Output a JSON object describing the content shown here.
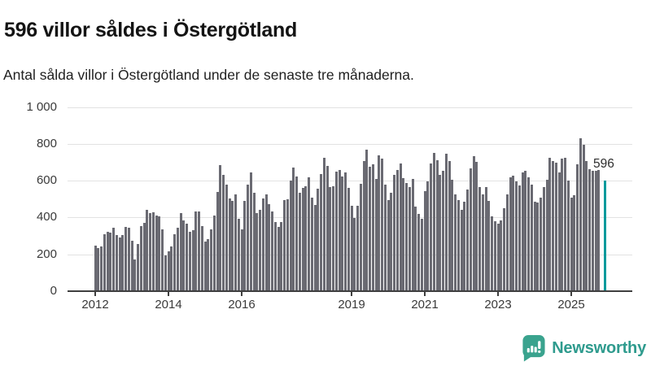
{
  "header": {
    "title": "596 villor såldes i Östergötland",
    "subtitle": "Antal sålda villor i Östergötland under de senaste tre månaderna."
  },
  "chart_data": {
    "type": "bar",
    "title": "596 villor såldes i Östergötland",
    "subtitle": "Antal sålda villor i Östergötland under de senaste tre månaderna.",
    "ylabel": "Antal sålda villor",
    "ylim": [
      0,
      1000
    ],
    "grid": "horizontal",
    "bar_color": "#6a6a72",
    "highlight_color": "#009a9c",
    "annotation_label": "596",
    "highlight_value": 596,
    "y_axis": {
      "ticks": [
        {
          "value": 0,
          "label": "0"
        },
        {
          "value": 200,
          "label": "200"
        },
        {
          "value": 400,
          "label": "400"
        },
        {
          "value": 600,
          "label": "600"
        },
        {
          "value": 800,
          "label": "800"
        },
        {
          "value": 1000,
          "label": "1 000"
        }
      ]
    },
    "x_axis": {
      "ticks": [
        {
          "label": "2012",
          "month_index": 0
        },
        {
          "label": "2014",
          "month_index": 24
        },
        {
          "label": "2016",
          "month_index": 48
        },
        {
          "label": "2019",
          "month_index": 84
        },
        {
          "label": "2021",
          "month_index": 108
        },
        {
          "label": "2023",
          "month_index": 132
        },
        {
          "label": "2025",
          "month_index": 156
        }
      ]
    },
    "values": [
      245,
      230,
      240,
      305,
      320,
      315,
      340,
      300,
      285,
      300,
      345,
      340,
      270,
      170,
      250,
      350,
      365,
      435,
      420,
      425,
      405,
      400,
      330,
      190,
      210,
      240,
      305,
      340,
      420,
      380,
      360,
      320,
      325,
      430,
      430,
      350,
      265,
      280,
      330,
      405,
      535,
      680,
      625,
      575,
      500,
      485,
      520,
      390,
      330,
      485,
      575,
      640,
      530,
      420,
      435,
      500,
      520,
      470,
      430,
      370,
      345,
      370,
      490,
      495,
      595,
      665,
      620,
      530,
      555,
      565,
      615,
      505,
      465,
      550,
      630,
      720,
      675,
      560,
      565,
      645,
      655,
      620,
      640,
      558,
      460,
      395,
      460,
      577,
      700,
      765,
      670,
      685,
      605,
      735,
      715,
      575,
      490,
      530,
      625,
      655,
      690,
      610,
      585,
      560,
      605,
      455,
      415,
      390,
      540,
      590,
      690,
      745,
      705,
      625,
      650,
      740,
      700,
      600,
      520,
      490,
      436,
      480,
      548,
      661,
      730,
      698,
      562,
      521,
      562,
      484,
      400,
      377,
      362,
      381,
      447,
      521,
      612,
      624,
      592,
      568,
      642,
      651,
      612,
      573,
      480,
      475,
      505,
      560,
      600,
      720,
      700,
      695,
      640,
      715,
      720,
      595,
      505,
      515,
      685,
      825,
      790,
      700,
      660,
      650,
      650,
      655,
      null,
      596
    ]
  },
  "footer": {
    "brand": "Newsworthy"
  },
  "colors": {
    "bar": "#6a6a72",
    "highlight": "#009a9c",
    "grid": "#e2e2e2",
    "axis": "#3f3f3f",
    "brand": "#3aa38e"
  }
}
